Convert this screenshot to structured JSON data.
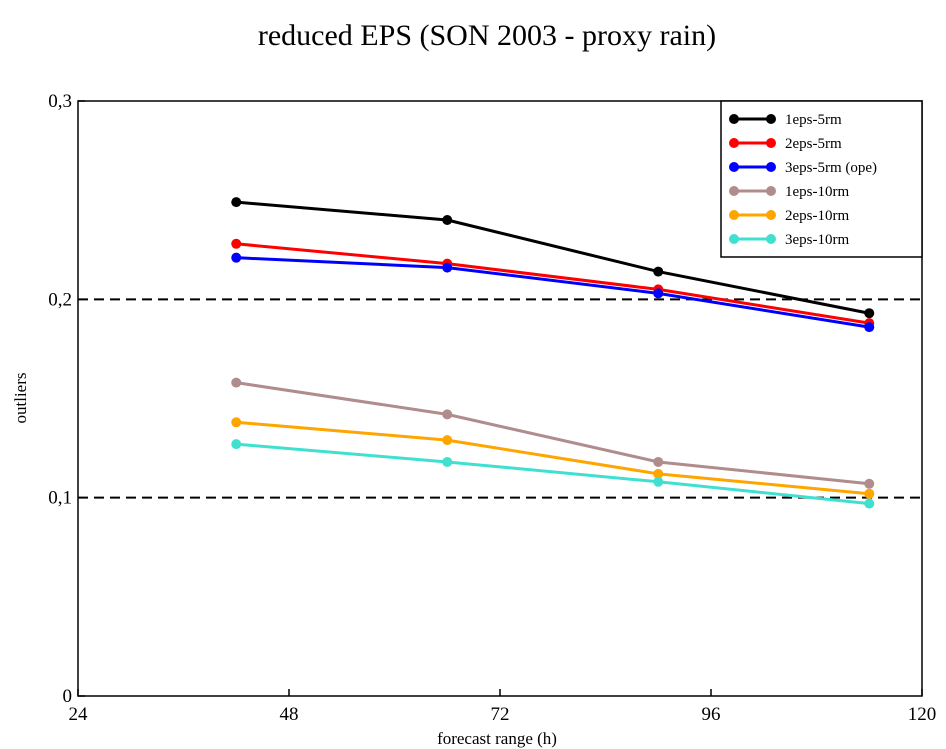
{
  "chart_data": {
    "type": "line",
    "title": "reduced EPS (SON 2003 - proxy rain)",
    "xlabel": "forecast range (h)",
    "ylabel": "outliers",
    "xlim": [
      24,
      120
    ],
    "ylim": [
      0,
      0.3
    ],
    "xticks": [
      24,
      48,
      72,
      96,
      120
    ],
    "xtick_labels": [
      "24",
      "48",
      "72",
      "96",
      "120"
    ],
    "yticks": [
      0,
      0.1,
      0.2,
      0.3
    ],
    "ytick_labels": [
      "0",
      "0,1",
      "0,2",
      "0,3"
    ],
    "reference_lines": [
      {
        "y": 0.1,
        "style": "dashed"
      },
      {
        "y": 0.2,
        "style": "dashed"
      }
    ],
    "grid": false,
    "legend_position": "top-right",
    "x": [
      42,
      66,
      90,
      114
    ],
    "series": [
      {
        "name": "1eps-5rm",
        "color": "#000000",
        "values": [
          0.249,
          0.24,
          0.214,
          0.193
        ]
      },
      {
        "name": "2eps-5rm",
        "color": "#ff0000",
        "values": [
          0.228,
          0.218,
          0.205,
          0.188
        ]
      },
      {
        "name": "3eps-5rm (ope)",
        "color": "#0000ff",
        "values": [
          0.221,
          0.216,
          0.203,
          0.186
        ]
      },
      {
        "name": "1eps-10rm",
        "color": "#b08c8c",
        "values": [
          0.158,
          0.142,
          0.118,
          0.107
        ]
      },
      {
        "name": "2eps-10rm",
        "color": "#ffa500",
        "values": [
          0.138,
          0.129,
          0.112,
          0.102
        ]
      },
      {
        "name": "3eps-10rm",
        "color": "#40e0d0",
        "values": [
          0.127,
          0.118,
          0.108,
          0.097
        ]
      }
    ]
  }
}
